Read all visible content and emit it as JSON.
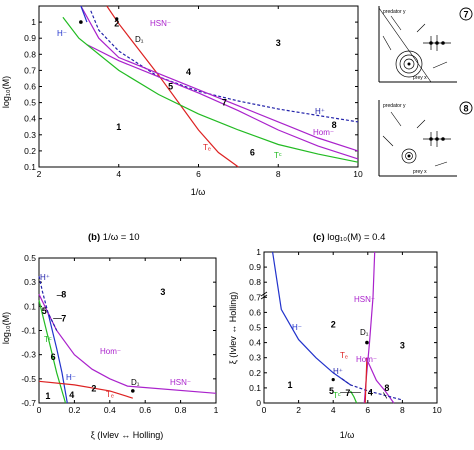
{
  "colors": {
    "hsn": "#aa22cc",
    "hom": "#aa22cc",
    "hplus": "#2222aa",
    "hminus": "#2233cc",
    "te": "#dd2222",
    "tc": "#22bb22",
    "marker": "#aaaaaa"
  },
  "panel_a": {
    "xlabel": "1/ω",
    "ylabel": "log₁₀(M)",
    "xticks": [
      "2",
      "4",
      "6",
      "8",
      "10"
    ],
    "yticks": [
      "0.1",
      "0.2",
      "0.3",
      "0.4",
      "0.5",
      "0.6",
      "0.7",
      "0.8",
      "0.9",
      "1"
    ],
    "curve_labels": {
      "hsn": "HSN⁻",
      "hminus": "H⁻",
      "hplus": "H⁺",
      "hom": "Hom⁻",
      "te": "Tₑ",
      "tc": "Tᶜ",
      "d1": "D₁"
    },
    "regions": [
      {
        "label": "1",
        "x": 4.0,
        "y": 0.35
      },
      {
        "label": "2",
        "x": 3.95,
        "y": 0.99
      },
      {
        "label": "3",
        "x": 8.0,
        "y": 0.87
      },
      {
        "label": "4",
        "x": 5.75,
        "y": 0.69
      },
      {
        "label": "5",
        "x": 5.3,
        "y": 0.6
      },
      {
        "label": "6",
        "x": 7.35,
        "y": 0.19
      },
      {
        "label": "7",
        "x": 6.65,
        "y": 0.5
      },
      {
        "label": "8",
        "x": 9.4,
        "y": 0.36
      }
    ]
  },
  "panel_b": {
    "title_bold": "(b)",
    "title_rest": " 1/ω = 10",
    "xlabel": "ξ (Ivlev ↔ Holling)",
    "ylabel": "log₁₀(M)",
    "xticks": [
      "0",
      "0.2",
      "0.4",
      "0.6",
      "0.8",
      "1"
    ],
    "yticks": [
      "-0.7",
      "-0.5",
      "-0.3",
      "-0.1",
      "0.1",
      "0.3",
      "0.5"
    ],
    "curve_labels": {
      "hplus": "H⁺",
      "hminus": "H⁻",
      "hom": "Hom⁻",
      "hsn": "HSN⁻",
      "tc": "Tᶜ",
      "te": "Tₑ",
      "d1": "D₁"
    },
    "regions": [
      {
        "label": "1",
        "x": 0.05,
        "y": -0.64
      },
      {
        "label": "2",
        "x": 0.31,
        "y": -0.58
      },
      {
        "label": "3",
        "x": 0.7,
        "y": 0.22
      },
      {
        "label": "4",
        "x": 0.185,
        "y": -0.635
      },
      {
        "label": "5",
        "x": 0.03,
        "y": 0.06
      },
      {
        "label": "6",
        "x": 0.08,
        "y": -0.32
      },
      {
        "label": "7",
        "x": 0.14,
        "y": 0.0
      },
      {
        "label": "8",
        "x": 0.14,
        "y": 0.2
      }
    ]
  },
  "panel_c": {
    "title_bold": "(c)",
    "title_rest": " log₁₀(M) = 0.4",
    "xlabel": "1/ω",
    "ylabel": "ξ (Ivlev ↔ Holling)",
    "xticks": [
      "0",
      "2",
      "4",
      "6",
      "8",
      "10"
    ],
    "yticks": [
      "0",
      "0.1",
      "0.2",
      "0.3",
      "0.4",
      "0.5",
      "0.6",
      "0.7",
      "0.8",
      "0.9",
      "1"
    ],
    "curve_labels": {
      "hsn": "HSN⁻",
      "hminus": "H⁻",
      "hplus": "H⁺",
      "hom": "Hom⁻",
      "te": "Tₑ",
      "tc": "Tᶜ",
      "d1": "D₁"
    },
    "regions": [
      {
        "label": "1",
        "x": 1.5,
        "y": 0.12
      },
      {
        "label": "2",
        "x": 4.0,
        "y": 0.52
      },
      {
        "label": "3",
        "x": 8.0,
        "y": 0.38
      },
      {
        "label": "4",
        "x": 6.15,
        "y": 0.07
      },
      {
        "label": "5",
        "x": 3.9,
        "y": 0.08
      },
      {
        "label": "7",
        "x": 4.85,
        "y": 0.065
      },
      {
        "label": "8",
        "x": 7.1,
        "y": 0.1
      }
    ]
  },
  "insets": [
    {
      "number": "7",
      "y_label": "predator y",
      "x_label": "prey x"
    },
    {
      "number": "8",
      "y_label": "predator y",
      "x_label": "prey x"
    }
  ],
  "chart_data": [
    {
      "type": "line",
      "panel": "a",
      "xlabel": "1/ω",
      "ylabel": "log₁₀(M)",
      "xlim": [
        2,
        10
      ],
      "ylim": [
        0.1,
        1.1
      ],
      "series": [
        {
          "name": "H⁻",
          "x": [
            3.3,
            3.5,
            4.0,
            5.0,
            6.0,
            7.0,
            8.0,
            9.0,
            10.0
          ],
          "y": [
            1.07,
            0.95,
            0.82,
            0.66,
            0.57,
            0.51,
            0.46,
            0.42,
            0.38
          ]
        },
        {
          "name": "HSN⁻",
          "x": [
            3.7,
            4.0,
            4.5,
            5.0,
            5.5,
            6.0,
            6.5,
            7.0
          ],
          "y": [
            1.1,
            0.99,
            0.83,
            0.67,
            0.5,
            0.33,
            0.19,
            0.1
          ]
        },
        {
          "name": "Hom⁻",
          "x": [
            3.2,
            4.0,
            5.0,
            6.0,
            7.0,
            8.0,
            9.0,
            10.0
          ],
          "y": [
            0.86,
            0.76,
            0.66,
            0.56,
            0.45,
            0.33,
            0.23,
            0.15
          ]
        },
        {
          "name": "Tᶜ",
          "x": [
            2.6,
            3.0,
            4.0,
            5.0,
            6.0,
            7.0,
            8.0,
            9.0,
            10.0
          ],
          "y": [
            1.03,
            0.9,
            0.7,
            0.55,
            0.43,
            0.33,
            0.24,
            0.18,
            0.13
          ]
        }
      ]
    },
    {
      "type": "line",
      "panel": "b",
      "xlabel": "ξ (Ivlev ↔ Holling)",
      "ylabel": "log₁₀(M)",
      "xlim": [
        0,
        1
      ],
      "ylim": [
        -0.7,
        0.5
      ],
      "series": [
        {
          "name": "H⁻",
          "x": [
            0.05,
            0.1,
            0.13,
            0.16
          ],
          "y": [
            0.05,
            -0.25,
            -0.45,
            -0.7
          ]
        },
        {
          "name": "Hom⁻",
          "x": [
            0.0,
            0.1,
            0.2,
            0.3,
            0.4,
            0.5,
            1.0
          ],
          "y": [
            0.2,
            -0.1,
            -0.3,
            -0.42,
            -0.5,
            -0.56,
            -0.62
          ]
        },
        {
          "name": "Tᶜ",
          "x": [
            0.0,
            0.05,
            0.1,
            0.15
          ],
          "y": [
            0.15,
            -0.15,
            -0.45,
            -0.7
          ]
        },
        {
          "name": "Tₑ",
          "x": [
            0.0,
            0.2,
            0.4,
            0.53
          ],
          "y": [
            -0.52,
            -0.55,
            -0.6,
            -0.66
          ]
        }
      ]
    },
    {
      "type": "line",
      "panel": "c",
      "xlabel": "1/ω",
      "ylabel": "ξ (Ivlev ↔ Holling)",
      "xlim": [
        0,
        10
      ],
      "ylim": [
        0,
        1
      ],
      "series": [
        {
          "name": "H⁻",
          "x": [
            0.5,
            1.0,
            2.0,
            3.0,
            4.0,
            5.0
          ],
          "y": [
            1.0,
            0.62,
            0.42,
            0.3,
            0.2,
            0.12
          ]
        },
        {
          "name": "HSN⁻",
          "x": [
            6.4,
            6.3,
            6.1,
            5.9,
            5.8
          ],
          "y": [
            1.0,
            0.7,
            0.4,
            0.15,
            0.0
          ]
        },
        {
          "name": "Hom⁻",
          "x": [
            5.9,
            6.5,
            7.0,
            7.5
          ],
          "y": [
            0.3,
            0.15,
            0.08,
            0.0
          ]
        },
        {
          "name": "H⁺",
          "x": [
            4.5,
            5.0,
            6.0,
            7.0,
            8.0
          ],
          "y": [
            0.16,
            0.12,
            0.08,
            0.05,
            0.02
          ]
        }
      ]
    }
  ]
}
